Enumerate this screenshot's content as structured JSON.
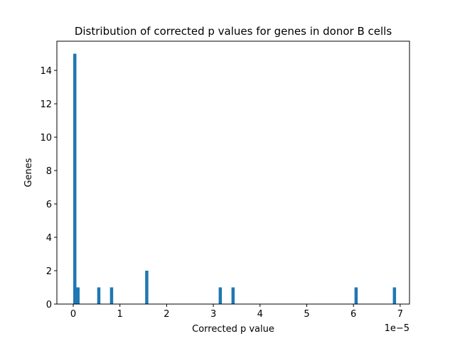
{
  "chart_data": {
    "type": "bar",
    "title": "Distribution of corrected p values for genes in donor B cells",
    "xlabel": "Corrected p value",
    "ylabel": "Genes",
    "x_offset_text": "1e−5",
    "x_scale_exponent": -5,
    "xlim": [
      -0.35,
      7.2
    ],
    "ylim": [
      0,
      15.75
    ],
    "x_ticks": [
      0,
      1,
      2,
      3,
      4,
      5,
      6,
      7
    ],
    "x_tick_labels": [
      "0",
      "1",
      "2",
      "3",
      "4",
      "5",
      "6",
      "7"
    ],
    "y_ticks": [
      0,
      2,
      4,
      6,
      8,
      10,
      12,
      14
    ],
    "y_tick_labels": [
      "0",
      "2",
      "4",
      "6",
      "8",
      "10",
      "12",
      "14"
    ],
    "bin_width": 0.0685,
    "bins": [
      {
        "x": 0.0,
        "count": 15
      },
      {
        "x": 0.0685,
        "count": 1
      },
      {
        "x": 0.5135,
        "count": 1
      },
      {
        "x": 0.787,
        "count": 1
      },
      {
        "x": 1.5405,
        "count": 2
      },
      {
        "x": 3.1145,
        "count": 1
      },
      {
        "x": 3.388,
        "count": 1
      },
      {
        "x": 6.0225,
        "count": 1
      },
      {
        "x": 6.8435,
        "count": 1
      }
    ],
    "bar_color": "#1f77b4",
    "grid": false,
    "legend": "none"
  }
}
